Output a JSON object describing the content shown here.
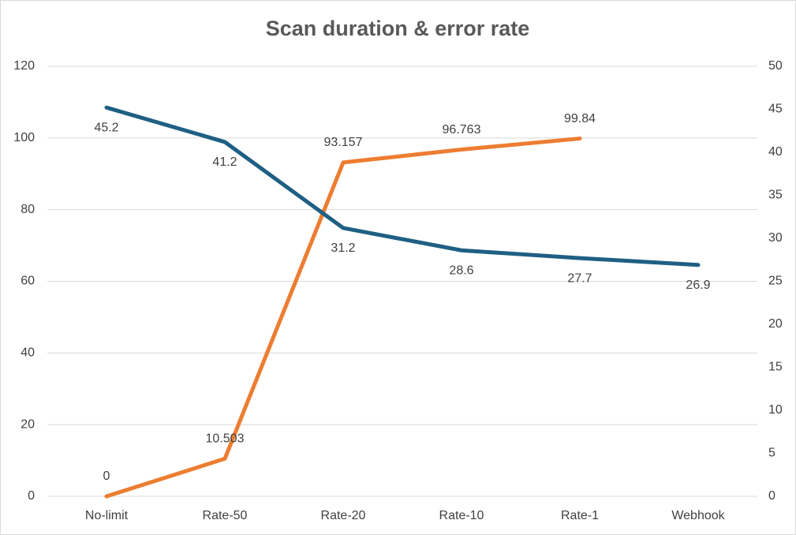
{
  "chart_data": {
    "type": "line",
    "title": "Scan duration & error rate",
    "categories": [
      "No-limit",
      "Rate-50",
      "Rate-20",
      "Rate-10",
      "Rate-1",
      "Webhook"
    ],
    "series": [
      {
        "color": "#ed7d31",
        "values": [
          0,
          10.503,
          93.157,
          96.763,
          99.84,
          null
        ]
      },
      {
        "color": "#1f5f84",
        "axis": "y2",
        "values": [
          45.2,
          41.2,
          31.2,
          28.6,
          27.7,
          26.9
        ]
      }
    ],
    "ylim": [
      0,
      120
    ],
    "yticks": [
      0,
      20,
      40,
      60,
      80,
      100,
      120
    ],
    "y2lim": [
      0,
      50
    ],
    "y2ticks": [
      0,
      5,
      10,
      15,
      20,
      25,
      30,
      35,
      40,
      45,
      50
    ],
    "grid": true
  }
}
